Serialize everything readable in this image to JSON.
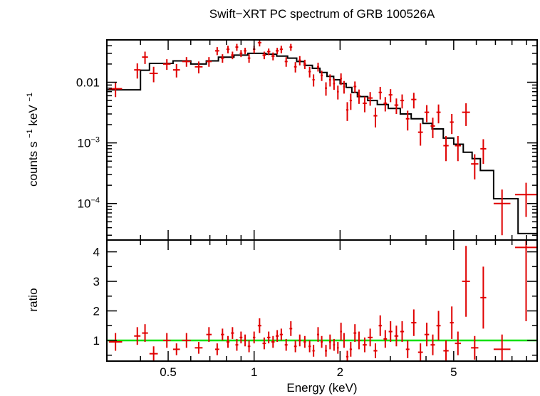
{
  "chart_data": {
    "type": "scatter",
    "title": "Swift−XRT PC spectrum of GRB 100526A",
    "xlabel": "Energy (keV)",
    "x_scale": "log",
    "xlim": [
      0.305,
      9.8
    ],
    "x_ticks": [
      {
        "value": 0.5,
        "label": "0.5"
      },
      {
        "value": 1,
        "label": "1"
      },
      {
        "value": 2,
        "label": "2"
      },
      {
        "value": 5,
        "label": "5"
      }
    ],
    "panels": {
      "top": {
        "ylabel_base": "counts s",
        "ylabel_exp1": "−1",
        "ylabel_mid": " keV",
        "ylabel_exp2": "−1",
        "y_scale": "log",
        "ylim": [
          2.5e-05,
          0.05
        ],
        "y_ticks": [
          {
            "value": 0.01,
            "base": "0.01",
            "exp": ""
          },
          {
            "value": 0.001,
            "base": "10",
            "exp": "−3"
          },
          {
            "value": 0.0001,
            "base": "10",
            "exp": "−4"
          }
        ],
        "data_color": "#e00000",
        "model_color": "#000000",
        "data": [
          [
            0.31,
            0.345,
            0.0078,
            0.0021
          ],
          [
            0.38,
            0.4,
            0.016,
            0.0045
          ],
          [
            0.405,
            0.425,
            0.026,
            0.006
          ],
          [
            0.43,
            0.46,
            0.014,
            0.004
          ],
          [
            0.48,
            0.51,
            0.02,
            0.004
          ],
          [
            0.52,
            0.55,
            0.016,
            0.004
          ],
          [
            0.56,
            0.6,
            0.022,
            0.004
          ],
          [
            0.62,
            0.66,
            0.018,
            0.004
          ],
          [
            0.68,
            0.71,
            0.022,
            0.004
          ],
          [
            0.73,
            0.755,
            0.033,
            0.005
          ],
          [
            0.765,
            0.785,
            0.025,
            0.004
          ],
          [
            0.8,
            0.82,
            0.035,
            0.005
          ],
          [
            0.83,
            0.85,
            0.028,
            0.004
          ],
          [
            0.86,
            0.88,
            0.038,
            0.005
          ],
          [
            0.89,
            0.91,
            0.03,
            0.004
          ],
          [
            0.92,
            0.94,
            0.033,
            0.004
          ],
          [
            0.95,
            0.97,
            0.025,
            0.004
          ],
          [
            0.99,
            1.01,
            0.035,
            0.005
          ],
          [
            1.03,
            1.06,
            0.045,
            0.006
          ],
          [
            1.07,
            1.1,
            0.028,
            0.004
          ],
          [
            1.11,
            1.14,
            0.032,
            0.004
          ],
          [
            1.15,
            1.18,
            0.027,
            0.004
          ],
          [
            1.19,
            1.22,
            0.033,
            0.004
          ],
          [
            1.23,
            1.26,
            0.035,
            0.005
          ],
          [
            1.28,
            1.31,
            0.022,
            0.004
          ],
          [
            1.33,
            1.36,
            0.038,
            0.005
          ],
          [
            1.38,
            1.41,
            0.018,
            0.0035
          ],
          [
            1.43,
            1.46,
            0.023,
            0.004
          ],
          [
            1.49,
            1.52,
            0.02,
            0.0035
          ],
          [
            1.55,
            1.58,
            0.015,
            0.003
          ],
          [
            1.6,
            1.63,
            0.011,
            0.0025
          ],
          [
            1.66,
            1.69,
            0.018,
            0.003
          ],
          [
            1.71,
            1.74,
            0.013,
            0.0025
          ],
          [
            1.77,
            1.8,
            0.008,
            0.002
          ],
          [
            1.83,
            1.86,
            0.011,
            0.0025
          ],
          [
            1.89,
            1.92,
            0.0095,
            0.002
          ],
          [
            1.95,
            1.98,
            0.007,
            0.0018
          ],
          [
            2.0,
            2.03,
            0.0115,
            0.0025
          ],
          [
            2.05,
            2.08,
            0.0085,
            0.002
          ],
          [
            2.1,
            2.14,
            0.0035,
            0.0012
          ],
          [
            2.16,
            2.2,
            0.005,
            0.0015
          ],
          [
            2.23,
            2.28,
            0.0085,
            0.0018
          ],
          [
            2.3,
            2.36,
            0.006,
            0.0016
          ],
          [
            2.4,
            2.48,
            0.0045,
            0.0013
          ],
          [
            2.5,
            2.6,
            0.0055,
            0.0014
          ],
          [
            2.62,
            2.7,
            0.0028,
            0.001
          ],
          [
            2.73,
            2.8,
            0.0068,
            0.0016
          ],
          [
            2.84,
            2.92,
            0.0045,
            0.0012
          ],
          [
            2.96,
            3.05,
            0.0062,
            0.0015
          ],
          [
            3.1,
            3.2,
            0.0042,
            0.0012
          ],
          [
            3.25,
            3.35,
            0.005,
            0.0013
          ],
          [
            3.4,
            3.5,
            0.0025,
            0.0009
          ],
          [
            3.55,
            3.7,
            0.0052,
            0.0015
          ],
          [
            3.75,
            3.9,
            0.0015,
            0.0006
          ],
          [
            3.95,
            4.1,
            0.0032,
            0.001
          ],
          [
            4.15,
            4.3,
            0.0019,
            0.0007
          ],
          [
            4.35,
            4.5,
            0.0032,
            0.0011
          ],
          [
            4.6,
            4.8,
            0.0009,
            0.0004
          ],
          [
            4.85,
            5.0,
            0.0022,
            0.0008
          ],
          [
            5.05,
            5.3,
            0.0009,
            0.0004
          ],
          [
            5.35,
            5.7,
            0.0032,
            0.0013
          ],
          [
            5.75,
            6.1,
            0.00045,
            0.0002
          ],
          [
            6.2,
            6.5,
            0.0008,
            0.00035
          ],
          [
            6.9,
            7.9,
            0.0001,
            7e-05
          ],
          [
            8.2,
            9.8,
            0.00014,
            8e-05
          ]
        ],
        "model": [
          [
            0.305,
            0.0075
          ],
          [
            0.4,
            0.0075
          ],
          [
            0.4,
            0.0158
          ],
          [
            0.43,
            0.0158
          ],
          [
            0.43,
            0.0205
          ],
          [
            0.52,
            0.0205
          ],
          [
            0.52,
            0.0225
          ],
          [
            0.6,
            0.0225
          ],
          [
            0.6,
            0.02
          ],
          [
            0.68,
            0.02
          ],
          [
            0.68,
            0.0225
          ],
          [
            0.75,
            0.0225
          ],
          [
            0.75,
            0.026
          ],
          [
            0.85,
            0.026
          ],
          [
            0.85,
            0.028
          ],
          [
            0.95,
            0.028
          ],
          [
            0.95,
            0.03
          ],
          [
            1.1,
            0.03
          ],
          [
            1.1,
            0.029
          ],
          [
            1.2,
            0.029
          ],
          [
            1.2,
            0.027
          ],
          [
            1.31,
            0.027
          ],
          [
            1.31,
            0.025
          ],
          [
            1.41,
            0.025
          ],
          [
            1.41,
            0.022
          ],
          [
            1.5,
            0.022
          ],
          [
            1.5,
            0.019
          ],
          [
            1.6,
            0.019
          ],
          [
            1.6,
            0.017
          ],
          [
            1.7,
            0.017
          ],
          [
            1.7,
            0.0145
          ],
          [
            1.8,
            0.0145
          ],
          [
            1.8,
            0.0125
          ],
          [
            1.9,
            0.0125
          ],
          [
            1.9,
            0.011
          ],
          [
            2.0,
            0.011
          ],
          [
            2.0,
            0.0095
          ],
          [
            2.1,
            0.0095
          ],
          [
            2.1,
            0.0082
          ],
          [
            2.2,
            0.0082
          ],
          [
            2.2,
            0.0068
          ],
          [
            2.3,
            0.0068
          ],
          [
            2.3,
            0.0058
          ],
          [
            2.5,
            0.0058
          ],
          [
            2.5,
            0.005
          ],
          [
            2.7,
            0.005
          ],
          [
            2.7,
            0.0043
          ],
          [
            2.95,
            0.0043
          ],
          [
            2.95,
            0.0037
          ],
          [
            3.25,
            0.0037
          ],
          [
            3.25,
            0.003
          ],
          [
            3.55,
            0.003
          ],
          [
            3.55,
            0.0025
          ],
          [
            3.9,
            0.0025
          ],
          [
            3.9,
            0.0021
          ],
          [
            4.2,
            0.0021
          ],
          [
            4.2,
            0.0017
          ],
          [
            4.6,
            0.0017
          ],
          [
            4.6,
            0.0012
          ],
          [
            5.0,
            0.0012
          ],
          [
            5.0,
            0.00095
          ],
          [
            5.4,
            0.00095
          ],
          [
            5.4,
            0.0007
          ],
          [
            5.8,
            0.0007
          ],
          [
            5.8,
            0.00055
          ],
          [
            6.2,
            0.00055
          ],
          [
            6.2,
            0.00035
          ],
          [
            6.9,
            0.00035
          ],
          [
            6.9,
            0.00012
          ],
          [
            8.4,
            0.00012
          ],
          [
            8.4,
            3.2e-05
          ],
          [
            9.8,
            3.2e-05
          ]
        ]
      },
      "bottom": {
        "ylabel": "ratio",
        "y_scale": "linear",
        "ylim": [
          0.3,
          4.4
        ],
        "y_ticks": [
          {
            "value": 1,
            "label": "1"
          },
          {
            "value": 2,
            "label": "2"
          },
          {
            "value": 3,
            "label": "3"
          },
          {
            "value": 4,
            "label": "4"
          }
        ],
        "reference_line": 1,
        "reference_color": "#00e000",
        "data_color": "#e00000",
        "data": [
          [
            0.31,
            0.345,
            0.95,
            0.3
          ],
          [
            0.38,
            0.4,
            1.15,
            0.3
          ],
          [
            0.405,
            0.425,
            1.25,
            0.3
          ],
          [
            0.43,
            0.46,
            0.55,
            0.25
          ],
          [
            0.48,
            0.51,
            1.0,
            0.25
          ],
          [
            0.52,
            0.55,
            0.7,
            0.2
          ],
          [
            0.56,
            0.6,
            1.0,
            0.25
          ],
          [
            0.62,
            0.66,
            0.75,
            0.2
          ],
          [
            0.68,
            0.71,
            1.2,
            0.25
          ],
          [
            0.73,
            0.755,
            0.7,
            0.2
          ],
          [
            0.765,
            0.785,
            1.2,
            0.2
          ],
          [
            0.8,
            0.82,
            0.95,
            0.2
          ],
          [
            0.83,
            0.85,
            1.25,
            0.2
          ],
          [
            0.86,
            0.88,
            0.85,
            0.2
          ],
          [
            0.89,
            0.91,
            1.1,
            0.2
          ],
          [
            0.92,
            0.94,
            1.0,
            0.2
          ],
          [
            0.95,
            0.97,
            0.8,
            0.2
          ],
          [
            0.99,
            1.01,
            1.1,
            0.2
          ],
          [
            1.03,
            1.06,
            1.5,
            0.25
          ],
          [
            1.07,
            1.1,
            0.9,
            0.2
          ],
          [
            1.11,
            1.14,
            1.1,
            0.2
          ],
          [
            1.15,
            1.18,
            0.95,
            0.2
          ],
          [
            1.19,
            1.22,
            1.15,
            0.2
          ],
          [
            1.23,
            1.26,
            1.2,
            0.2
          ],
          [
            1.28,
            1.31,
            0.85,
            0.2
          ],
          [
            1.33,
            1.36,
            1.4,
            0.25
          ],
          [
            1.38,
            1.41,
            0.8,
            0.2
          ],
          [
            1.43,
            1.46,
            1.0,
            0.2
          ],
          [
            1.49,
            1.52,
            0.95,
            0.2
          ],
          [
            1.55,
            1.58,
            0.8,
            0.2
          ],
          [
            1.6,
            1.63,
            0.65,
            0.2
          ],
          [
            1.66,
            1.69,
            1.2,
            0.25
          ],
          [
            1.71,
            1.74,
            0.95,
            0.2
          ],
          [
            1.77,
            1.8,
            0.65,
            0.2
          ],
          [
            1.83,
            1.86,
            0.95,
            0.25
          ],
          [
            1.89,
            1.92,
            0.85,
            0.2
          ],
          [
            1.95,
            1.98,
            0.75,
            0.2
          ],
          [
            2.0,
            2.03,
            1.3,
            0.3
          ],
          [
            2.05,
            2.08,
            1.0,
            0.25
          ],
          [
            2.1,
            2.14,
            0.45,
            0.2
          ],
          [
            2.16,
            2.2,
            0.7,
            0.25
          ],
          [
            2.23,
            2.28,
            1.25,
            0.3
          ],
          [
            2.3,
            2.36,
            1.0,
            0.3
          ],
          [
            2.4,
            2.48,
            0.85,
            0.25
          ],
          [
            2.5,
            2.6,
            1.1,
            0.3
          ],
          [
            2.62,
            2.7,
            0.65,
            0.25
          ],
          [
            2.73,
            2.8,
            1.5,
            0.35
          ],
          [
            2.84,
            2.92,
            1.05,
            0.3
          ],
          [
            2.96,
            3.05,
            1.3,
            0.35
          ],
          [
            3.1,
            3.2,
            1.15,
            0.35
          ],
          [
            3.25,
            3.35,
            1.3,
            0.35
          ],
          [
            3.4,
            3.5,
            0.7,
            0.3
          ],
          [
            3.55,
            3.7,
            1.6,
            0.45
          ],
          [
            3.75,
            3.9,
            0.6,
            0.3
          ],
          [
            3.95,
            4.1,
            1.2,
            0.4
          ],
          [
            4.15,
            4.3,
            0.85,
            0.35
          ],
          [
            4.35,
            4.5,
            1.5,
            0.5
          ],
          [
            4.6,
            4.8,
            0.65,
            0.35
          ],
          [
            4.85,
            5.0,
            1.6,
            0.55
          ],
          [
            5.05,
            5.3,
            0.9,
            0.4
          ],
          [
            5.35,
            5.7,
            3.0,
            1.2
          ],
          [
            5.75,
            6.1,
            0.75,
            0.4
          ],
          [
            6.2,
            6.5,
            2.45,
            1.05
          ],
          [
            6.9,
            7.9,
            0.7,
            0.5
          ],
          [
            8.2,
            9.8,
            4.15,
            2.5
          ]
        ]
      }
    }
  }
}
